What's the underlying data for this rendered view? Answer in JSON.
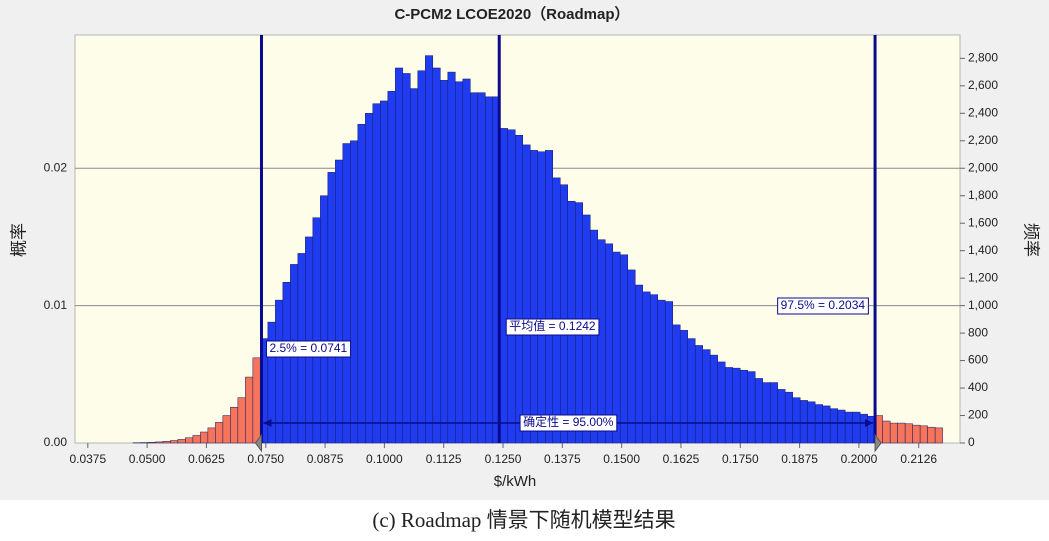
{
  "chart_data": {
    "type": "histogram",
    "title": "C-PCM2 LCOE2020（Roadmap）",
    "xlabel": "$/kWh",
    "ylabel": "概率",
    "y2label": "频率",
    "bins": [
      0.047,
      0.04858,
      0.05016,
      0.05174,
      0.05332,
      0.0549,
      0.05648,
      0.05806,
      0.05964,
      0.06122,
      0.0628,
      0.06438,
      0.06596,
      0.06754,
      0.06912,
      0.0707,
      0.07228,
      0.07386,
      0.07544,
      0.07702,
      0.0786,
      0.08018,
      0.08176,
      0.08334,
      0.08492,
      0.0865,
      0.08808,
      0.08966,
      0.09124,
      0.09282,
      0.0944,
      0.09598,
      0.09756,
      0.09914,
      0.10072,
      0.1023,
      0.10388,
      0.10546,
      0.10704,
      0.10862,
      0.1102,
      0.11178,
      0.11336,
      0.11494,
      0.11652,
      0.1181,
      0.11968,
      0.12126,
      0.12284,
      0.12442,
      0.126,
      0.12758,
      0.12916,
      0.13074,
      0.13232,
      0.1339,
      0.13548,
      0.13706,
      0.13864,
      0.14022,
      0.1418,
      0.14338,
      0.14496,
      0.14654,
      0.14812,
      0.1497,
      0.15128,
      0.15286,
      0.15444,
      0.15602,
      0.1576,
      0.15918,
      0.16076,
      0.16234,
      0.16392,
      0.1655,
      0.16708,
      0.16866,
      0.17024,
      0.17182,
      0.1734,
      0.17498,
      0.17656,
      0.17814,
      0.17972,
      0.1813,
      0.18288,
      0.18446,
      0.18604,
      0.18762,
      0.1892,
      0.19078,
      0.19236,
      0.19394,
      0.19552,
      0.1971,
      0.19868,
      0.20026,
      0.20184,
      0.20342,
      0.205,
      0.20658,
      0.20816,
      0.20974,
      0.21132,
      0.2129,
      0.21448,
      0.21606,
      0.21764
    ],
    "series": [
      {
        "axis": "y2",
        "color": "#1f3cf0",
        "tail_color": "#f4745c",
        "values": [
          2,
          3,
          5,
          8,
          12,
          18,
          26,
          38,
          55,
          80,
          110,
          150,
          200,
          260,
          330,
          480,
          620,
          760,
          880,
          1040,
          1170,
          1300,
          1380,
          1500,
          1640,
          1800,
          1970,
          2060,
          2180,
          2200,
          2320,
          2400,
          2470,
          2490,
          2560,
          2730,
          2690,
          2580,
          2710,
          2820,
          2730,
          2640,
          2700,
          2630,
          2650,
          2550,
          2550,
          2520,
          2520,
          2290,
          2280,
          2240,
          2170,
          2130,
          2120,
          2130,
          1930,
          1880,
          1760,
          1750,
          1660,
          1550,
          1480,
          1450,
          1390,
          1370,
          1260,
          1150,
          1100,
          1080,
          1040,
          1030,
          860,
          820,
          760,
          710,
          680,
          640,
          590,
          550,
          545,
          530,
          520,
          470,
          440,
          440,
          390,
          370,
          330,
          310,
          300,
          280,
          270,
          250,
          240,
          225,
          225,
          210,
          195,
          200,
          160,
          145,
          145,
          140,
          130,
          125,
          115,
          110
        ]
      }
    ],
    "xlim": [
      0.0348,
      0.2213
    ],
    "xticks": [
      0.0375,
      {
        "value": 0.05,
        "label": "0.0500"
      },
      0.0625,
      {
        "value": 0.075,
        "label": "0.0750"
      },
      0.0875,
      {
        "value": 0.1,
        "label": "0.1000"
      },
      0.1125,
      {
        "value": 0.125,
        "label": "0.1250"
      },
      0.1375,
      {
        "value": 0.15,
        "label": "0.1500"
      },
      0.1625,
      {
        "value": 0.175,
        "label": "0.1750"
      },
      0.1875,
      {
        "value": 0.2,
        "label": "0.2000"
      },
      0.2126
    ],
    "ylim": [
      0,
      0.0297
    ],
    "yticks": [
      {
        "value": 0,
        "label": "0.00"
      },
      0.01,
      0.02
    ],
    "y2lim": [
      0,
      2970
    ],
    "y2ticks": [
      0,
      200,
      400,
      600,
      800,
      {
        "value": 1000,
        "label": "1,000"
      },
      {
        "value": 1200,
        "label": "1,200"
      },
      {
        "value": 1400,
        "label": "1,400"
      },
      {
        "value": 1600,
        "label": "1,600"
      },
      {
        "value": 1800,
        "label": "1,800"
      },
      {
        "value": 2000,
        "label": "2,000"
      },
      {
        "value": 2200,
        "label": "2,200"
      },
      {
        "value": 2400,
        "label": "2,400"
      },
      {
        "value": 2600,
        "label": "2,600"
      },
      {
        "value": 2800,
        "label": "2,800"
      }
    ],
    "grid": true,
    "markers": [
      {
        "value": 0.0741,
        "label": "2.5% = 0.0741"
      },
      {
        "value": 0.1242,
        "label": "平均值 = 0.1242"
      },
      {
        "value": 0.2034,
        "label": "97.5% = 0.2034"
      }
    ],
    "certainty": "确定性 = 95.00%"
  },
  "caption": "(c) Roadmap 情景下随机模型结果"
}
